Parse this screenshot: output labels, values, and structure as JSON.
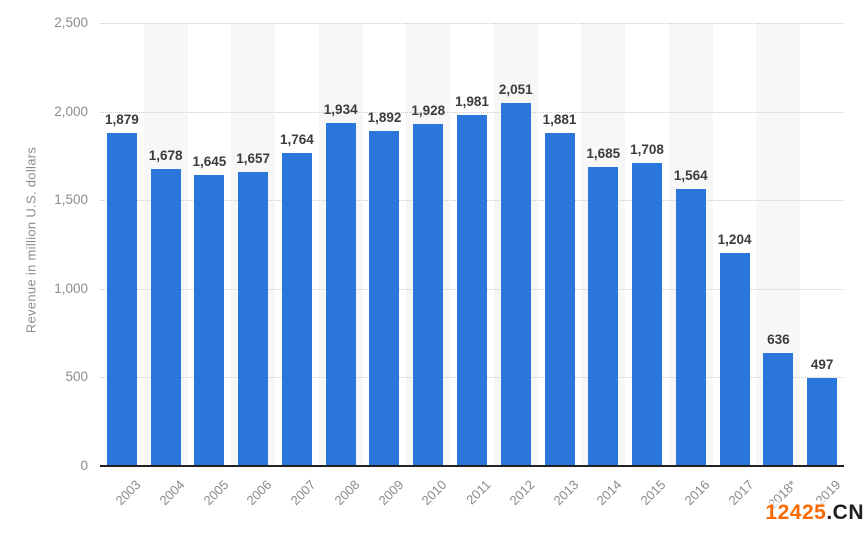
{
  "chart_data": {
    "type": "bar",
    "title": "",
    "xlabel": "",
    "ylabel": "Revenue in million U.S. dollars",
    "categories": [
      "2003",
      "2004",
      "2005",
      "2006",
      "2007",
      "2008",
      "2009",
      "2010",
      "2011",
      "2012",
      "2013",
      "2014",
      "2015",
      "2016",
      "2017",
      "2018*",
      "2019"
    ],
    "values": [
      1879,
      1678,
      1645,
      1657,
      1764,
      1934,
      1892,
      1928,
      1981,
      2051,
      1881,
      1685,
      1708,
      1564,
      1204,
      636,
      497
    ],
    "value_labels": [
      "1,879",
      "1,678",
      "1,645",
      "1,657",
      "1,764",
      "1,934",
      "1,892",
      "1,928",
      "1,981",
      "2,051",
      "1,881",
      "1,685",
      "1,708",
      "1,564",
      "1,204",
      "636",
      "497"
    ],
    "ylim": [
      0,
      2500
    ],
    "yticks": [
      0,
      500,
      1000,
      1500,
      2000,
      2500
    ],
    "ytick_labels": [
      "0",
      "500",
      "1,000",
      "1,500",
      "2,000",
      "2,500"
    ],
    "grid": "horizontal-dotted",
    "legend": "none",
    "bar_color": "#2B76DB",
    "alt_band_color": "#F7F7F7",
    "axis_line_color": "#222222",
    "tick_label_color": "#8C8C8C",
    "value_label_color": "#3C3C3C"
  },
  "watermark": {
    "primary": "12425",
    "secondary": ".CN",
    "primary_color": "#F96A00",
    "secondary_color": "#1F1F1F"
  }
}
